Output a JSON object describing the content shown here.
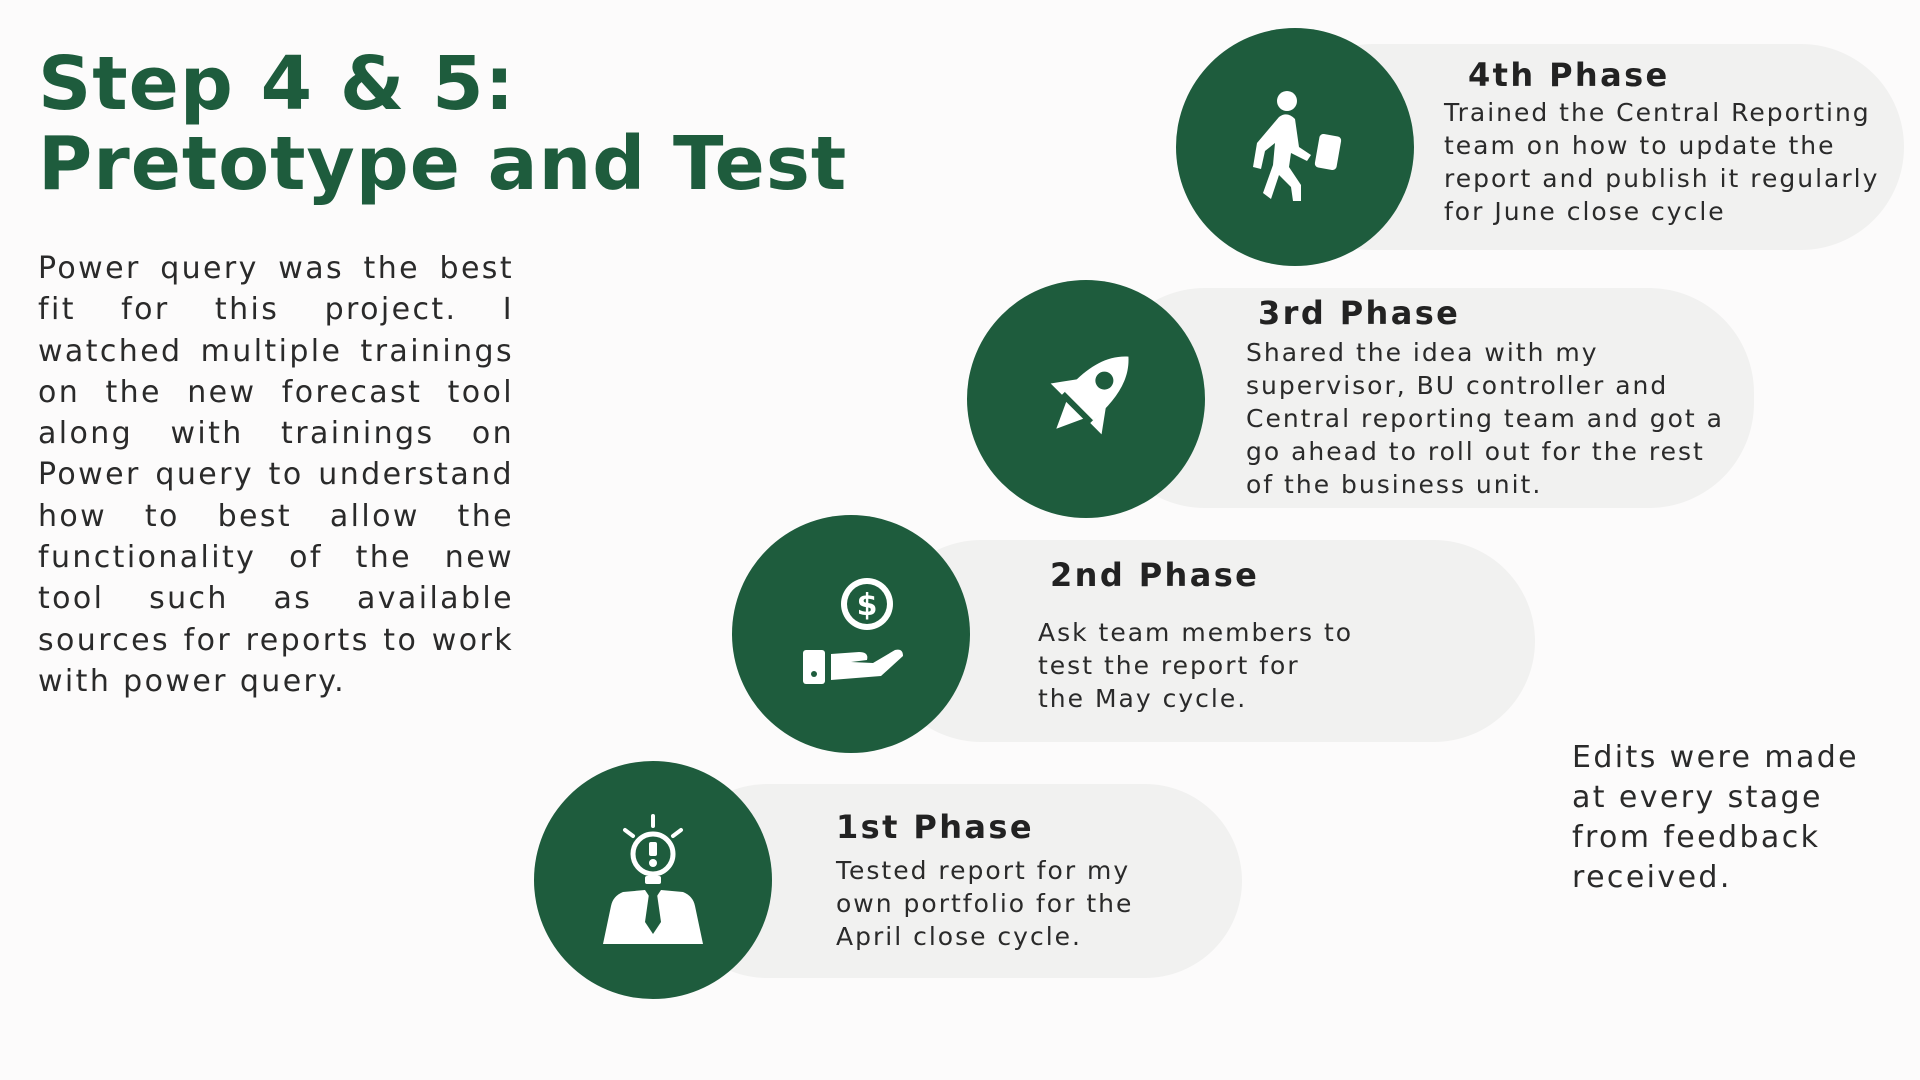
{
  "title": {
    "line1": "Step 4 & 5:",
    "line2": "Pretotype and Test"
  },
  "intro": "Power query was the best fit for this project. I watched multiple trainings on the new forecast tool along with trainings on Power query to understand how to best allow the functionality of the new tool such as available sources for reports to work with power query.",
  "phases": {
    "p4": {
      "title": "4th Phase",
      "description": "Trained the Central Reporting\nteam on how to update the\nreport and publish it regularly\nfor June close cycle",
      "icon": "walking-person-with-briefcase-icon"
    },
    "p3": {
      "title": "3rd Phase",
      "description": "Shared the idea with my\nsupervisor, BU controller and\nCentral reporting team and got a\ngo ahead to roll out for the rest\nof the business unit.",
      "icon": "rocket-icon"
    },
    "p2": {
      "title": "2nd Phase",
      "description": "Ask team members to\ntest the report for\nthe May cycle.",
      "icon": "hand-holding-dollar-coin-icon"
    },
    "p1": {
      "title": "1st Phase",
      "description": "Tested report for my\nown portfolio for the\nApril close cycle.",
      "icon": "businessman-lightbulb-idea-icon"
    }
  },
  "edits_note": "Edits were made\nat every stage\nfrom feedback\nreceived.",
  "colors": {
    "accent": "#1e5c3d",
    "pill": "#f1f1f0",
    "background": "#fcfbfb"
  }
}
